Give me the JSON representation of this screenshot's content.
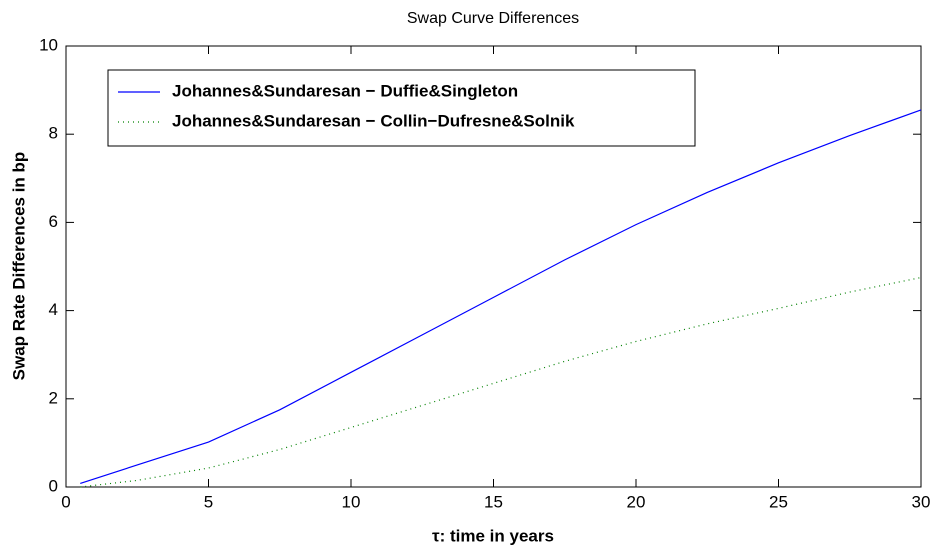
{
  "chart_data": {
    "type": "line",
    "title": "Swap Curve Differences",
    "x_label": "τ: time in years",
    "y_label": "Swap Rate Differences in bp",
    "x": [
      0.5,
      2.5,
      5,
      7.5,
      10,
      12.5,
      15,
      17.5,
      20,
      22.5,
      25,
      27.5,
      30
    ],
    "series": [
      {
        "name": "Johannes&Sundaresan − Duffie&Singleton",
        "color": "#0000ff",
        "style": "solid",
        "values": [
          0.08,
          0.5,
          1.02,
          1.75,
          2.6,
          3.45,
          4.3,
          5.15,
          5.95,
          6.68,
          7.35,
          7.97,
          8.55
        ]
      },
      {
        "name": "Johannes&Sundaresan − Collin−Dufresne&Solnik",
        "color": "#008000",
        "style": "dotted",
        "values": [
          0.0,
          0.15,
          0.43,
          0.85,
          1.35,
          1.85,
          2.35,
          2.85,
          3.3,
          3.7,
          4.05,
          4.42,
          4.75
        ]
      }
    ],
    "xlim": [
      0,
      30
    ],
    "xticks": [
      0,
      5,
      10,
      15,
      20,
      25,
      30
    ],
    "ylim": [
      0,
      10
    ],
    "yticks": [
      0,
      2,
      4,
      6,
      8,
      10
    ],
    "grid": false,
    "legend": "upper left"
  }
}
